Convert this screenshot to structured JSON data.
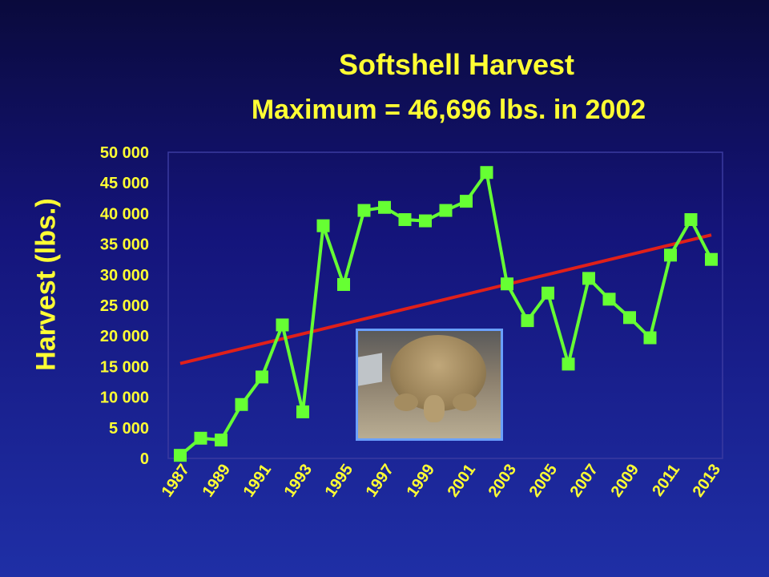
{
  "colors": {
    "text": "#ffff33",
    "series": "#66ff33",
    "trend": "#e0201a",
    "plot_border": "#3a3aa0",
    "photo_border": "#6aa0ff"
  },
  "photo": {
    "icon": "softshell-turtle-photo"
  },
  "chart_data": {
    "type": "line",
    "title": "Softshell Harvest",
    "subtitle": "Maximum = 46,696 lbs. in 2002",
    "xlabel": "",
    "ylabel": "Harvest (lbs.)",
    "ylim": [
      0,
      50000
    ],
    "y_ticks": [
      0,
      5000,
      10000,
      15000,
      20000,
      25000,
      30000,
      35000,
      40000,
      45000,
      50000
    ],
    "y_tick_labels": [
      "0",
      "5 000",
      "10 000",
      "15 000",
      "20 000",
      "25 000",
      "30 000",
      "35 000",
      "40 000",
      "45 000",
      "50 000"
    ],
    "x_tick_labels": [
      "1987",
      "1989",
      "1991",
      "1993",
      "1995",
      "1997",
      "1999",
      "2001",
      "2003",
      "2005",
      "2007",
      "2009",
      "2011",
      "2013"
    ],
    "grid": false,
    "legend": "none",
    "series": [
      {
        "x": [
          1987,
          1988,
          1989,
          1990,
          1991,
          1992,
          1993,
          1994,
          1995,
          1996,
          1997,
          1998,
          1999,
          2000,
          2001,
          2002,
          2003,
          2004,
          2005,
          2006,
          2007,
          2008,
          2009,
          2010,
          2011,
          2012,
          2013
        ],
        "values": [
          500,
          3300,
          3000,
          8800,
          13300,
          21800,
          7600,
          38000,
          28400,
          40500,
          41000,
          39000,
          38800,
          40500,
          42000,
          46696,
          28500,
          22500,
          27000,
          15400,
          29400,
          26000,
          23000,
          19700,
          33200,
          39000,
          32500
        ],
        "marker": "square"
      }
    ],
    "trendline": {
      "x": [
        1987,
        2013
      ],
      "values": [
        15500,
        36500
      ]
    }
  }
}
